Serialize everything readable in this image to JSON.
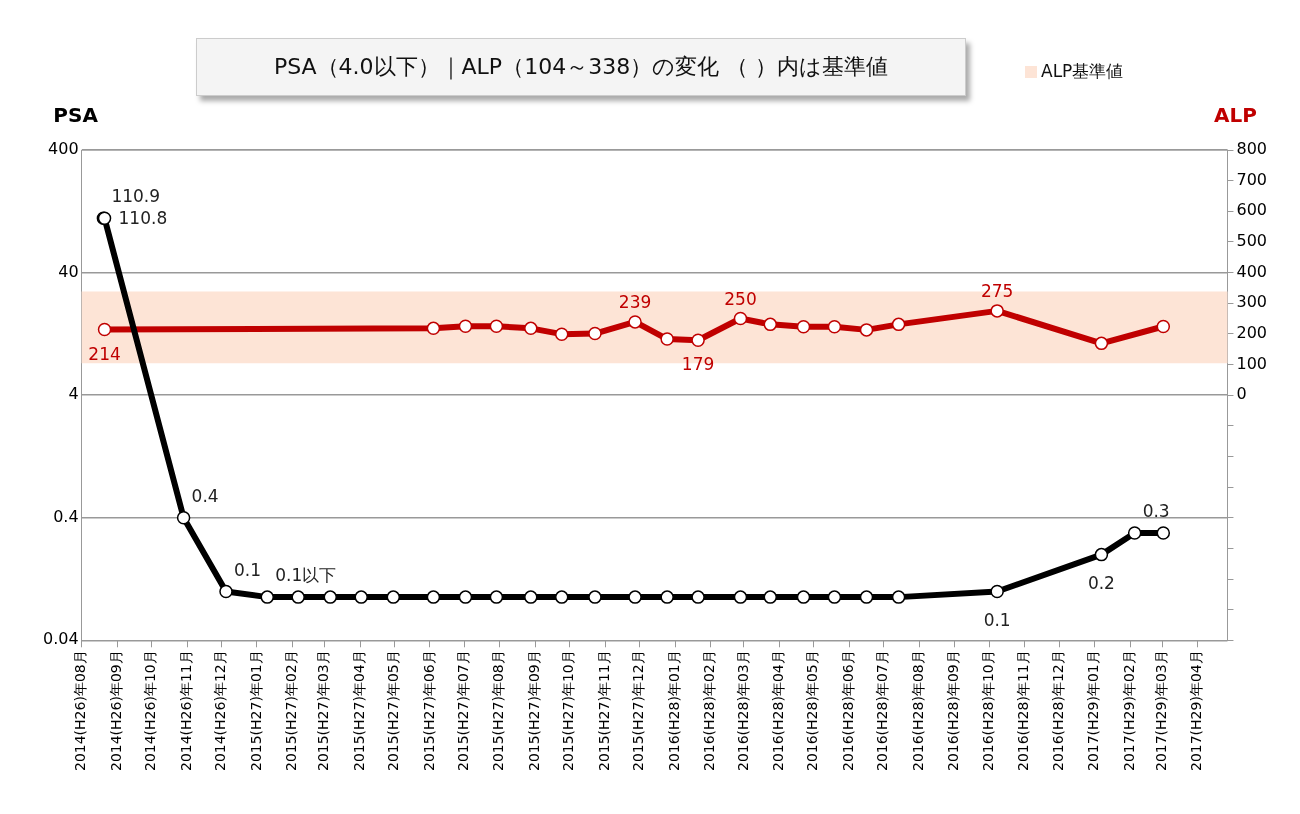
{
  "chart_data": {
    "type": "line",
    "title": "PSA（4.0以下）｜ALP（104～338）の変化 （ ）内は基準値",
    "ylabel": "PSA",
    "y2label": "ALP",
    "log": "y",
    "grid": "y",
    "legend": "top right",
    "marker": "circle",
    "xlim": [
      "2014-08-01",
      "2017-04-27"
    ],
    "xticks": [
      {
        "value": "2014-08",
        "label": "2014(H26)年08月"
      },
      {
        "value": "2014-09",
        "label": "2014(H26)年09月"
      },
      {
        "value": "2014-10",
        "label": "2014(H26)年10月"
      },
      {
        "value": "2014-11",
        "label": "2014(H26)年11月"
      },
      {
        "value": "2014-12",
        "label": "2014(H26)年12月"
      },
      {
        "value": "2015-01",
        "label": "2015(H27)年01月"
      },
      {
        "value": "2015-02",
        "label": "2015(H27)年02月"
      },
      {
        "value": "2015-03",
        "label": "2015(H27)年03月"
      },
      {
        "value": "2015-04",
        "label": "2015(H27)年04月"
      },
      {
        "value": "2015-05",
        "label": "2015(H27)年05月"
      },
      {
        "value": "2015-06",
        "label": "2015(H27)年06月"
      },
      {
        "value": "2015-07",
        "label": "2015(H27)年07月"
      },
      {
        "value": "2015-08",
        "label": "2015(H27)年08月"
      },
      {
        "value": "2015-09",
        "label": "2015(H27)年09月"
      },
      {
        "value": "2015-10",
        "label": "2015(H27)年10月"
      },
      {
        "value": "2015-11",
        "label": "2015(H27)年11月"
      },
      {
        "value": "2015-12",
        "label": "2015(H27)年12月"
      },
      {
        "value": "2016-01",
        "label": "2016(H28)年01月"
      },
      {
        "value": "2016-02",
        "label": "2016(H28)年02月"
      },
      {
        "value": "2016-03",
        "label": "2016(H28)年03月"
      },
      {
        "value": "2016-04",
        "label": "2016(H28)年04月"
      },
      {
        "value": "2016-05",
        "label": "2016(H28)年05月"
      },
      {
        "value": "2016-06",
        "label": "2016(H28)年06月"
      },
      {
        "value": "2016-07",
        "label": "2016(H28)年07月"
      },
      {
        "value": "2016-08",
        "label": "2016(H28)年08月"
      },
      {
        "value": "2016-09",
        "label": "2016(H28)年09月"
      },
      {
        "value": "2016-10",
        "label": "2016(H28)年10月"
      },
      {
        "value": "2016-11",
        "label": "2016(H28)年11月"
      },
      {
        "value": "2016-12",
        "label": "2016(H28)年12月"
      },
      {
        "value": "2017-01",
        "label": "2017(H29)年01月"
      },
      {
        "value": "2017-02",
        "label": "2017(H29)年02月"
      },
      {
        "value": "2017-03",
        "label": "2017(H29)年03月"
      },
      {
        "value": "2017-04",
        "label": "2017(H29)年04月"
      }
    ],
    "ylim": [
      0.04,
      400
    ],
    "yticks": [
      0.04,
      0.4,
      4,
      40,
      400
    ],
    "y2lim": [
      -800,
      800
    ],
    "y2ticks": [
      {
        "value": -800,
        "label": null
      },
      {
        "value": -700,
        "label": null
      },
      {
        "value": -600,
        "label": null
      },
      {
        "value": -500,
        "label": null
      },
      {
        "value": -400,
        "label": null
      },
      {
        "value": -300,
        "label": null
      },
      {
        "value": -200,
        "label": null
      },
      {
        "value": -100,
        "label": null
      },
      0,
      100,
      200,
      300,
      400,
      500,
      600,
      700,
      800
    ],
    "bands": [
      {
        "axis": "y2",
        "from": 104,
        "to": 338,
        "label": "ALP基準値",
        "color": "#fde4d6"
      }
    ],
    "series": [
      {
        "color": "#000000",
        "x": [
          "2014-08-20",
          "2014-08-21",
          "2014-10-29",
          "2014-12-05",
          "2015-01-10",
          "2015-02-06",
          "2015-03-06",
          "2015-04-02",
          "2015-04-30",
          "2015-06-04",
          "2015-07-02",
          "2015-07-29",
          "2015-08-28",
          "2015-09-24",
          "2015-10-23",
          "2015-11-27",
          "2015-12-25",
          "2016-01-21",
          "2016-02-27",
          "2016-03-24",
          "2016-04-22",
          "2016-05-19",
          "2016-06-16",
          "2016-07-14",
          "2016-10-08",
          "2017-01-07",
          "2017-02-05",
          "2017-03-02"
        ],
        "values": [
          110.9,
          110.8,
          0.4,
          0.1,
          0.09,
          0.09,
          0.09,
          0.09,
          0.09,
          0.09,
          0.09,
          0.09,
          0.09,
          0.09,
          0.09,
          0.09,
          0.09,
          0.09,
          0.09,
          0.09,
          0.09,
          0.09,
          0.09,
          0.09,
          0.1,
          0.2,
          0.3,
          0.3
        ],
        "value_labels": [
          "110.9",
          "110.8",
          "0.4",
          "0.1",
          "0.1以下",
          null,
          null,
          null,
          null,
          null,
          null,
          null,
          null,
          null,
          null,
          null,
          null,
          null,
          null,
          null,
          null,
          null,
          null,
          null,
          "0.1",
          "0.2",
          "0.3",
          null
        ]
      },
      {
        "color": "#c00000",
        "axis": "y2",
        "x": [
          "2014-08-21",
          "2015-06-04",
          "2015-07-02",
          "2015-07-29",
          "2015-08-28",
          "2015-09-24",
          "2015-10-23",
          "2015-11-27",
          "2015-12-25",
          "2016-01-21",
          "2016-02-27",
          "2016-03-24",
          "2016-04-22",
          "2016-05-19",
          "2016-06-16",
          "2016-07-14",
          "2016-10-08",
          "2017-01-07",
          "2017-03-02"
        ],
        "values": [
          214,
          218,
          225,
          225,
          218,
          199,
          201,
          239,
          183,
          179,
          250,
          231,
          223,
          223,
          213,
          231,
          275,
          169,
          224
        ],
        "value_labels": [
          "214",
          null,
          null,
          null,
          null,
          null,
          null,
          "239",
          null,
          "179",
          "250",
          null,
          null,
          null,
          null,
          null,
          "275",
          null,
          null
        ]
      }
    ]
  }
}
